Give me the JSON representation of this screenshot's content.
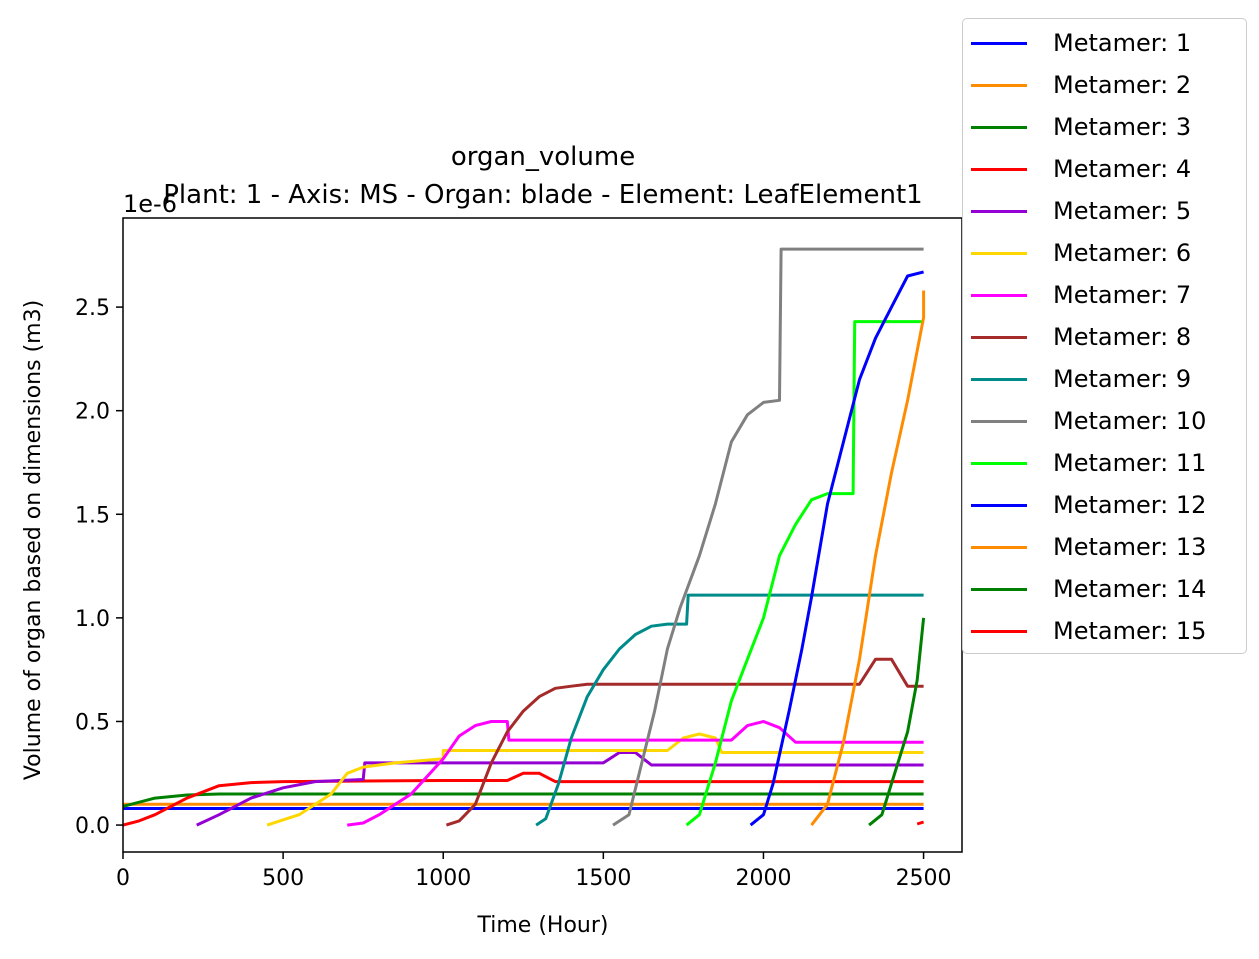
{
  "chart_data": {
    "type": "line",
    "title": "organ_volume",
    "subtitle": "Plant: 1 - Axis: MS - Organ: blade - Element: LeafElement1",
    "xlabel": "Time (Hour)",
    "ylabel": "Volume of organ based on dimensions (m3)",
    "y_multiplier_label": "1e-6",
    "xlim": [
      0,
      2620
    ],
    "ylim": [
      -0.13,
      2.93
    ],
    "x_ticks": [
      "0",
      "500",
      "1000",
      "1500",
      "2000",
      "2500"
    ],
    "y_ticks": [
      "0.0",
      "0.5",
      "1.0",
      "1.5",
      "2.0",
      "2.5"
    ],
    "grid": false,
    "legend_position": "upper right, outside axes",
    "series": [
      {
        "name": "Metamer: 1",
        "color": "#0000ff",
        "points": [
          [
            0,
            0.08
          ],
          [
            2500,
            0.08
          ]
        ]
      },
      {
        "name": "Metamer: 2",
        "color": "#ff8c00",
        "points": [
          [
            0,
            0.1
          ],
          [
            2500,
            0.1
          ]
        ]
      },
      {
        "name": "Metamer: 3",
        "color": "#008000",
        "points": [
          [
            0,
            0.09
          ],
          [
            100,
            0.13
          ],
          [
            200,
            0.145
          ],
          [
            300,
            0.15
          ],
          [
            2500,
            0.15
          ]
        ]
      },
      {
        "name": "Metamer: 4",
        "color": "#ff0000",
        "points": [
          [
            0,
            0
          ],
          [
            50,
            0.02
          ],
          [
            100,
            0.05
          ],
          [
            200,
            0.13
          ],
          [
            300,
            0.19
          ],
          [
            400,
            0.205
          ],
          [
            500,
            0.21
          ],
          [
            1000,
            0.215
          ],
          [
            1200,
            0.215
          ],
          [
            1250,
            0.25
          ],
          [
            1300,
            0.25
          ],
          [
            1350,
            0.21
          ],
          [
            2500,
            0.21
          ]
        ]
      },
      {
        "name": "Metamer: 5",
        "color": "#9400d3",
        "points": [
          [
            230,
            0
          ],
          [
            300,
            0.05
          ],
          [
            400,
            0.13
          ],
          [
            500,
            0.18
          ],
          [
            600,
            0.21
          ],
          [
            750,
            0.22
          ],
          [
            755,
            0.3
          ],
          [
            1500,
            0.3
          ],
          [
            1550,
            0.35
          ],
          [
            1600,
            0.35
          ],
          [
            1650,
            0.29
          ],
          [
            2500,
            0.29
          ]
        ]
      },
      {
        "name": "Metamer: 6",
        "color": "#ffd700",
        "points": [
          [
            450,
            0
          ],
          [
            550,
            0.05
          ],
          [
            650,
            0.15
          ],
          [
            700,
            0.25
          ],
          [
            750,
            0.28
          ],
          [
            850,
            0.3
          ],
          [
            1000,
            0.32
          ],
          [
            1000,
            0.36
          ],
          [
            1700,
            0.36
          ],
          [
            1750,
            0.42
          ],
          [
            1800,
            0.44
          ],
          [
            1850,
            0.42
          ],
          [
            1870,
            0.35
          ],
          [
            2500,
            0.35
          ]
        ]
      },
      {
        "name": "Metamer: 7",
        "color": "#ff00ff",
        "points": [
          [
            700,
            0
          ],
          [
            750,
            0.01
          ],
          [
            800,
            0.05
          ],
          [
            900,
            0.15
          ],
          [
            1000,
            0.32
          ],
          [
            1050,
            0.43
          ],
          [
            1100,
            0.48
          ],
          [
            1150,
            0.5
          ],
          [
            1200,
            0.5
          ],
          [
            1205,
            0.41
          ],
          [
            1900,
            0.41
          ],
          [
            1950,
            0.48
          ],
          [
            2000,
            0.5
          ],
          [
            2050,
            0.47
          ],
          [
            2100,
            0.4
          ],
          [
            2500,
            0.4
          ]
        ]
      },
      {
        "name": "Metamer: 8",
        "color": "#a52a2a",
        "points": [
          [
            1010,
            0
          ],
          [
            1050,
            0.02
          ],
          [
            1100,
            0.1
          ],
          [
            1150,
            0.3
          ],
          [
            1200,
            0.45
          ],
          [
            1250,
            0.55
          ],
          [
            1300,
            0.62
          ],
          [
            1350,
            0.66
          ],
          [
            1400,
            0.67
          ],
          [
            1450,
            0.68
          ],
          [
            2300,
            0.68
          ],
          [
            2350,
            0.8
          ],
          [
            2400,
            0.8
          ],
          [
            2450,
            0.67
          ],
          [
            2500,
            0.67
          ]
        ]
      },
      {
        "name": "Metamer: 9",
        "color": "#008b8b",
        "points": [
          [
            1290,
            0
          ],
          [
            1320,
            0.03
          ],
          [
            1360,
            0.2
          ],
          [
            1400,
            0.42
          ],
          [
            1450,
            0.62
          ],
          [
            1500,
            0.75
          ],
          [
            1550,
            0.85
          ],
          [
            1600,
            0.92
          ],
          [
            1650,
            0.96
          ],
          [
            1700,
            0.97
          ],
          [
            1760,
            0.97
          ],
          [
            1765,
            1.11
          ],
          [
            2500,
            1.11
          ]
        ]
      },
      {
        "name": "Metamer: 10",
        "color": "#808080",
        "points": [
          [
            1530,
            0
          ],
          [
            1580,
            0.05
          ],
          [
            1620,
            0.3
          ],
          [
            1660,
            0.55
          ],
          [
            1700,
            0.85
          ],
          [
            1740,
            1.05
          ],
          [
            1800,
            1.3
          ],
          [
            1850,
            1.55
          ],
          [
            1900,
            1.85
          ],
          [
            1950,
            1.98
          ],
          [
            2000,
            2.04
          ],
          [
            2050,
            2.05
          ],
          [
            2055,
            2.78
          ],
          [
            2500,
            2.78
          ]
        ]
      },
      {
        "name": "Metamer: 11",
        "color": "#00ff00",
        "points": [
          [
            1760,
            0
          ],
          [
            1800,
            0.05
          ],
          [
            1850,
            0.3
          ],
          [
            1900,
            0.6
          ],
          [
            1950,
            0.8
          ],
          [
            2000,
            1.0
          ],
          [
            2050,
            1.3
          ],
          [
            2100,
            1.45
          ],
          [
            2150,
            1.57
          ],
          [
            2200,
            1.6
          ],
          [
            2280,
            1.6
          ],
          [
            2285,
            2.43
          ],
          [
            2500,
            2.43
          ]
        ]
      },
      {
        "name": "Metamer: 12",
        "color": "#0000ff",
        "points": [
          [
            1960,
            0
          ],
          [
            2000,
            0.05
          ],
          [
            2030,
            0.2
          ],
          [
            2080,
            0.55
          ],
          [
            2120,
            0.85
          ],
          [
            2150,
            1.1
          ],
          [
            2200,
            1.55
          ],
          [
            2250,
            1.85
          ],
          [
            2300,
            2.15
          ],
          [
            2350,
            2.35
          ],
          [
            2400,
            2.5
          ],
          [
            2450,
            2.65
          ],
          [
            2500,
            2.67
          ]
        ]
      },
      {
        "name": "Metamer: 13",
        "color": "#ff8c00",
        "points": [
          [
            2150,
            0
          ],
          [
            2200,
            0.1
          ],
          [
            2250,
            0.4
          ],
          [
            2300,
            0.8
          ],
          [
            2350,
            1.3
          ],
          [
            2400,
            1.7
          ],
          [
            2450,
            2.05
          ],
          [
            2500,
            2.45
          ],
          [
            2500,
            2.58
          ]
        ]
      },
      {
        "name": "Metamer: 14",
        "color": "#008000",
        "points": [
          [
            2330,
            0
          ],
          [
            2370,
            0.05
          ],
          [
            2400,
            0.2
          ],
          [
            2450,
            0.45
          ],
          [
            2480,
            0.7
          ],
          [
            2500,
            1.0
          ]
        ]
      },
      {
        "name": "Metamer: 15",
        "color": "#ff0000",
        "points": [
          [
            2480,
            0.005
          ],
          [
            2500,
            0.015
          ]
        ]
      }
    ]
  }
}
